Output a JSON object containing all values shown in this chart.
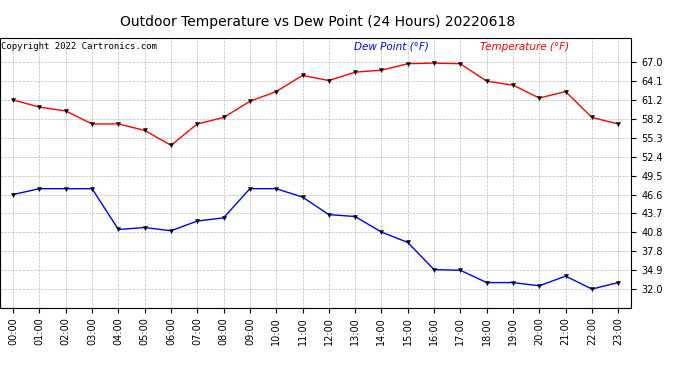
{
  "title": "Outdoor Temperature vs Dew Point (24 Hours) 20220618",
  "copyright": "Copyright 2022 Cartronics.com",
  "legend_dew": "Dew Point (°F)",
  "legend_temp": "Temperature (°F)",
  "x_labels": [
    "00:00",
    "01:00",
    "02:00",
    "03:00",
    "04:00",
    "05:00",
    "06:00",
    "07:00",
    "08:00",
    "09:00",
    "10:00",
    "11:00",
    "12:00",
    "13:00",
    "14:00",
    "15:00",
    "16:00",
    "17:00",
    "18:00",
    "19:00",
    "20:00",
    "21:00",
    "22:00",
    "23:00"
  ],
  "temperature": [
    61.2,
    60.1,
    59.5,
    57.5,
    57.5,
    56.5,
    54.2,
    57.5,
    58.5,
    61.0,
    62.5,
    65.0,
    64.2,
    65.5,
    65.8,
    66.8,
    66.9,
    66.8,
    64.1,
    63.5,
    61.5,
    62.5,
    58.5,
    57.5
  ],
  "dew_point": [
    46.6,
    47.5,
    47.5,
    47.5,
    41.2,
    41.5,
    41.0,
    42.5,
    43.0,
    47.5,
    47.5,
    46.2,
    43.5,
    43.2,
    40.8,
    39.2,
    35.0,
    34.9,
    33.0,
    33.0,
    32.5,
    34.0,
    32.0,
    33.0
  ],
  "ylim_min": 29.15,
  "ylim_max": 70.85,
  "yticks": [
    32.0,
    34.9,
    37.8,
    40.8,
    43.7,
    46.6,
    49.5,
    52.4,
    55.3,
    58.2,
    61.2,
    64.1,
    67.0
  ],
  "temp_color": "red",
  "dew_color": "blue",
  "grid_color": "#bbbbbb",
  "bg_color": "white",
  "title_fontsize": 10,
  "tick_fontsize": 7,
  "copyright_fontsize": 6.5,
  "legend_fontsize": 7.5,
  "marker_size": 3,
  "line_width": 1.0
}
